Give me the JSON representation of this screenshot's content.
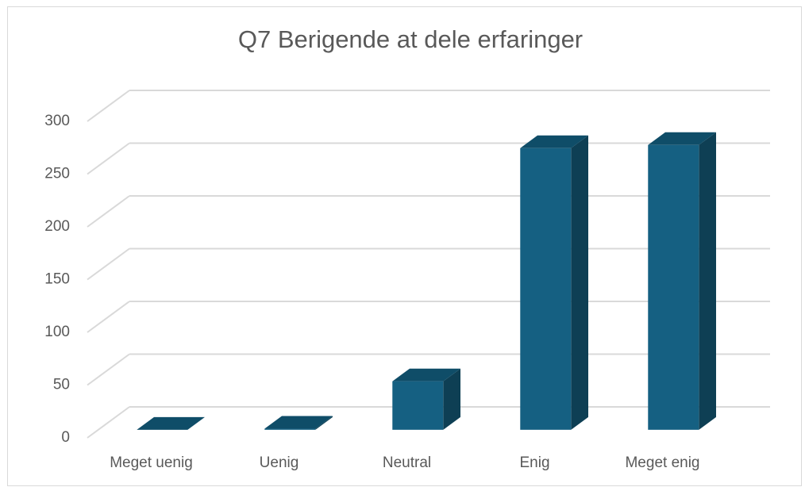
{
  "chart_data": {
    "type": "bar3d",
    "title": "Q7 Berigende at dele erfaringer",
    "categories": [
      "Meget uenig",
      "Uenig",
      "Neutral",
      "Enig",
      "Meget enig"
    ],
    "values": [
      0,
      1,
      46,
      267,
      270
    ],
    "color": "#156082",
    "ylim": [
      0,
      300
    ],
    "yticks": [
      0,
      50,
      100,
      150,
      200,
      250,
      300
    ],
    "grid": true
  }
}
